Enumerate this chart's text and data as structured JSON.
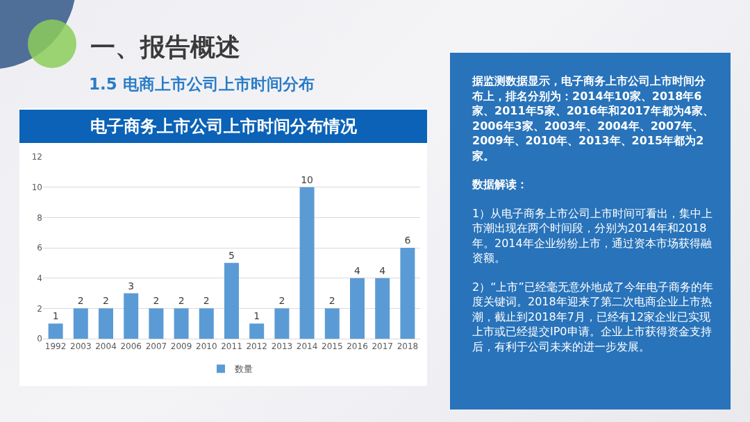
{
  "chart_data": [
    {
      "type": "bar",
      "title": "电子商务上市公司上市时间分布情况",
      "subtitle": "1.5 电商上市公司上市时间分布",
      "annotations": [
        "一、报告概述"
      ],
      "categories": [
        "1992",
        "2003",
        "2004",
        "2006",
        "2007",
        "2009",
        "2010",
        "2011",
        "2012",
        "2013",
        "2014",
        "2015",
        "2016",
        "2017",
        "2018"
      ],
      "series": [
        {
          "name": "数量",
          "color": "#5b9bd5",
          "values": [
            1,
            2,
            2,
            3,
            2,
            2,
            2,
            5,
            1,
            2,
            10,
            2,
            4,
            4,
            6
          ]
        }
      ],
      "ylim": [
        0,
        12
      ],
      "yticks": [
        0,
        2,
        4,
        6,
        8,
        10,
        12
      ],
      "grid": "y",
      "legend": "bottom",
      "data_labels": true
    },
    {
      "type": "other",
      "annotations": [
        "据监测数据显示，电子商务上市公司上市时间分布上，排名分别为：2014年10家、2018年6家、2011年5家、2016年和2017年都为4家、2006年3家、2003年、2004年、2007年、2009年、2010年、2013年、2015年都为2家。",
        "数据解读：",
        "1）从电子商务上市公司上市时间可看出，集中上市潮出现在两个时间段，分别为2014年和2018年。2014年企业纷纷上市，通过资本市场获得融资额。",
        "2）“上市”已经毫无意外地成了今年电子商务的年度关键词。2018年迎来了第二次电商企业上市热潮，截止到2018年7月，已经有12家企业已实现上市或已经提交IP0申请。企业上市获得资金支持后，有利于公司未来的进一步发展。"
      ]
    }
  ]
}
